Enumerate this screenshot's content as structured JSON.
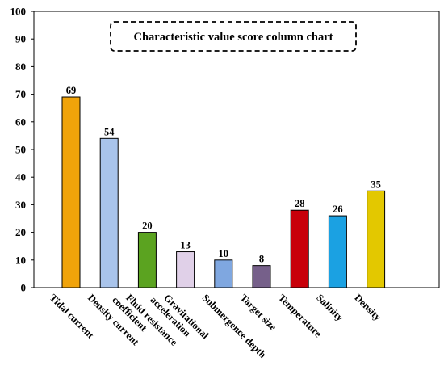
{
  "chart_data": {
    "type": "bar",
    "title": "Characteristic value score column chart",
    "xlabel": "",
    "ylabel": "",
    "ylim": [
      0,
      100
    ],
    "yticks": [
      0,
      10,
      20,
      30,
      40,
      50,
      60,
      70,
      80,
      90,
      100
    ],
    "grid": false,
    "legend": "none",
    "categories": [
      [
        "Tidal current"
      ],
      [
        "Density current"
      ],
      [
        "Fluid resistance",
        "coefficient"
      ],
      [
        "Gravitational",
        "acceleration"
      ],
      [
        "Submergence depth"
      ],
      [
        "Target size"
      ],
      [
        "Temperature"
      ],
      [
        "Salinity"
      ],
      [
        "Density"
      ]
    ],
    "values": [
      69,
      54,
      20,
      13,
      10,
      8,
      28,
      26,
      35
    ],
    "data_labels": [
      "69",
      "54",
      "20",
      "13",
      "10",
      "8",
      "28",
      "26",
      "35"
    ],
    "colors": [
      "#F0A30A",
      "#A9C4EB",
      "#5BA320",
      "#E0D0E8",
      "#7FA7E0",
      "#76608A",
      "#C8000A",
      "#1BA1E2",
      "#E3C800"
    ]
  }
}
